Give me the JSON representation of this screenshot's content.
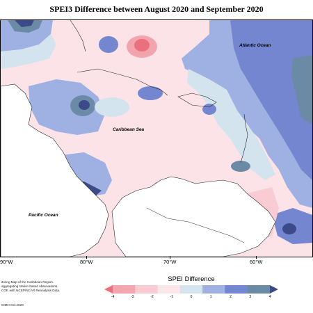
{
  "title": "SPEI3 Difference between August 2020 and September 2020",
  "ocean_labels": {
    "atlantic": "Atlantic Ocean",
    "caribbean": "Caribbean Sea",
    "pacific": "Pacific Ocean"
  },
  "longitude_labels": [
    "90°W",
    "80°W",
    "70°W",
    "60°W"
  ],
  "legend": {
    "title": "SPEI Difference",
    "ticks": [
      "-4",
      "-3",
      "-2",
      "-1",
      "0",
      "1",
      "2",
      "3",
      "4"
    ],
    "colors": [
      "#e9707c",
      "#f3a5ae",
      "#f8ccd2",
      "#fbe6e9",
      "#d4e4ef",
      "#9fb0e2",
      "#7486d0",
      "#6a8aa6",
      "#3d4a8a"
    ]
  },
  "credit": {
    "line1": "itoring Map of the Caribbean Region.",
    "line2": "aggregating station based observations,",
    "line3": "COF, with NCEP/NCAR Reanalysis Data."
  },
  "copyright": "CIMH Oct.2020"
}
